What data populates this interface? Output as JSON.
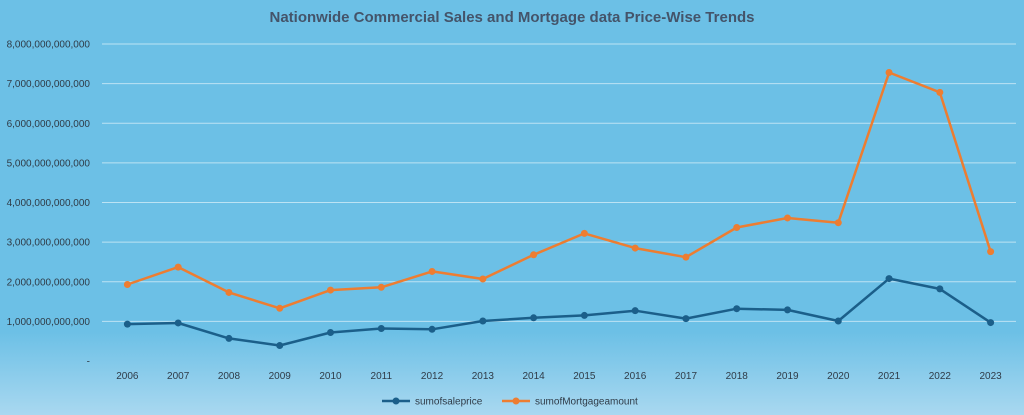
{
  "chart_data": {
    "type": "line",
    "title": "Nationwide Commercial Sales and Mortgage data Price-Wise Trends",
    "xlabel": "",
    "ylabel": "",
    "categories": [
      "2006",
      "2007",
      "2008",
      "2009",
      "2010",
      "2011",
      "2012",
      "2013",
      "2014",
      "2015",
      "2016",
      "2017",
      "2018",
      "2019",
      "2020",
      "2021",
      "2022",
      "2023"
    ],
    "ylim": [
      0,
      8000000000000
    ],
    "y_ticks": [
      {
        "value": 0,
        "label": "-"
      },
      {
        "value": 1000000000000,
        "label": "1,000,000,000,000"
      },
      {
        "value": 2000000000000,
        "label": "2,000,000,000,000"
      },
      {
        "value": 3000000000000,
        "label": "3,000,000,000,000"
      },
      {
        "value": 4000000000000,
        "label": "4,000,000,000,000"
      },
      {
        "value": 5000000000000,
        "label": "5,000,000,000,000"
      },
      {
        "value": 6000000000000,
        "label": "6,000,000,000,000"
      },
      {
        "value": 7000000000000,
        "label": "7,000,000,000,000"
      },
      {
        "value": 8000000000000,
        "label": "8,000,000,000,000"
      }
    ],
    "grid": true,
    "legend_position": "bottom",
    "series": [
      {
        "name": "sumofsaleprice",
        "color": "#1b5f8a",
        "values": [
          930000000000,
          960000000000,
          570000000000,
          390000000000,
          720000000000,
          820000000000,
          800000000000,
          1010000000000,
          1090000000000,
          1150000000000,
          1270000000000,
          1070000000000,
          1320000000000,
          1290000000000,
          1010000000000,
          2080000000000,
          1820000000000,
          970000000000
        ]
      },
      {
        "name": "sumofMortgageamount",
        "color": "#ed7d31",
        "values": [
          1930000000000,
          2370000000000,
          1730000000000,
          1330000000000,
          1790000000000,
          1860000000000,
          2260000000000,
          2070000000000,
          2680000000000,
          3220000000000,
          2850000000000,
          2620000000000,
          3370000000000,
          3610000000000,
          3490000000000,
          7280000000000,
          6780000000000,
          2760000000000
        ]
      }
    ]
  }
}
